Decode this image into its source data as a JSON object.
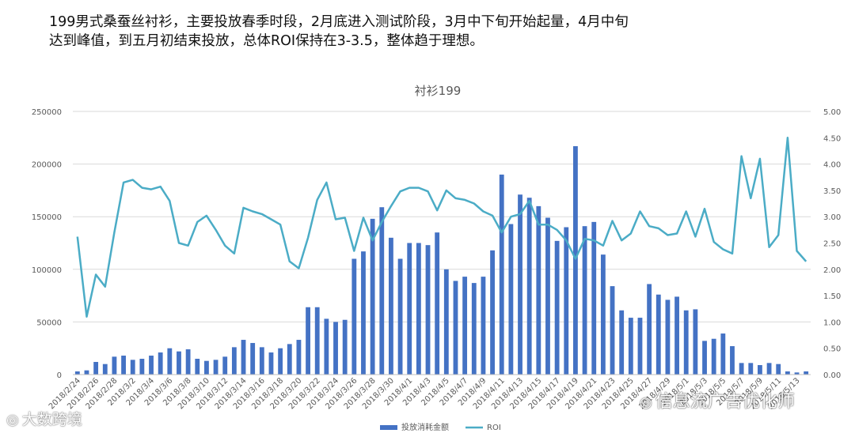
{
  "headline": {
    "line1": "199男式桑蚕丝衬衫，主要投放春季时段，2月底进入测试阶段，3月中下旬开始起量，4月中旬",
    "line2": "达到峰值，到五月初结束投放，总体ROI保持在3-3.5，整体趋于理想。"
  },
  "watermarks": {
    "left_icon": "wechat-icon",
    "left_text": "大数跨境",
    "right_icon": "wechat-icon",
    "right_text": "信息流广告优化师"
  },
  "colors": {
    "bar": "#4472C4",
    "line": "#4BACC6",
    "axis_text": "#595959",
    "grid": "#D9D9D9",
    "title": "#595959"
  },
  "chart_data": {
    "type": "bar",
    "title": "衬衫199",
    "xlabel": "",
    "ylabel": "",
    "x": [
      "2018/2/24",
      "2018/2/25",
      "2018/2/26",
      "2018/2/27",
      "2018/2/28",
      "2018/3/1",
      "2018/3/2",
      "2018/3/3",
      "2018/3/4",
      "2018/3/5",
      "2018/3/6",
      "2018/3/7",
      "2018/3/8",
      "2018/3/9",
      "2018/3/10",
      "2018/3/11",
      "2018/3/12",
      "2018/3/13",
      "2018/3/14",
      "2018/3/15",
      "2018/3/16",
      "2018/3/17",
      "2018/3/18",
      "2018/3/19",
      "2018/3/20",
      "2018/3/21",
      "2018/3/22",
      "2018/3/23",
      "2018/3/24",
      "2018/3/25",
      "2018/3/26",
      "2018/3/27",
      "2018/3/28",
      "2018/3/29",
      "2018/3/30",
      "2018/3/31",
      "2018/4/1",
      "2018/4/2",
      "2018/4/3",
      "2018/4/4",
      "2018/4/5",
      "2018/4/6",
      "2018/4/7",
      "2018/4/8",
      "2018/4/9",
      "2018/4/10",
      "2018/4/11",
      "2018/4/12",
      "2018/4/13",
      "2018/4/14",
      "2018/4/15",
      "2018/4/16",
      "2018/4/17",
      "2018/4/18",
      "2018/4/19",
      "2018/4/20",
      "2018/4/21",
      "2018/4/22",
      "2018/4/23",
      "2018/4/24",
      "2018/4/25",
      "2018/4/26",
      "2018/4/27",
      "2018/4/28",
      "2018/4/29",
      "2018/4/30",
      "2018/5/1",
      "2018/5/2",
      "2018/5/3",
      "2018/5/4",
      "2018/5/5",
      "2018/5/6",
      "2018/5/7",
      "2018/5/8",
      "2018/5/9",
      "2018/5/10",
      "2018/5/11",
      "2018/5/12",
      "2018/5/13",
      "2018/5/14"
    ],
    "tick_labels": [
      "2018/2/24",
      "2018/2/26",
      "2018/2/28",
      "2018/3/2",
      "2018/3/4",
      "2018/3/6",
      "2018/3/8",
      "2018/3/10",
      "2018/3/12",
      "2018/3/14",
      "2018/3/16",
      "2018/3/18",
      "2018/3/20",
      "2018/3/22",
      "2018/3/24",
      "2018/3/26",
      "2018/3/28",
      "2018/3/30",
      "2018/4/1",
      "2018/4/3",
      "2018/4/5",
      "2018/4/7",
      "2018/4/9",
      "2018/4/11",
      "2018/4/13",
      "2018/4/15",
      "2018/4/17",
      "2018/4/19",
      "2018/4/21",
      "2018/4/23",
      "2018/4/25",
      "2018/4/27",
      "2018/4/29",
      "2018/5/1",
      "2018/5/3",
      "2018/5/5",
      "2018/5/7",
      "2018/5/9",
      "2018/5/11",
      "2018/5/13"
    ],
    "y_left_ticks": [
      "0",
      "50000",
      "100000",
      "150000",
      "200000",
      "250000"
    ],
    "y_right_ticks": [
      "0.00",
      "0.50",
      "1.00",
      "1.50",
      "2.00",
      "2.50",
      "3.00",
      "3.50",
      "4.00",
      "4.50",
      "5.00"
    ],
    "ylim_left": [
      0,
      250000
    ],
    "ylim_right": [
      0,
      5
    ],
    "grid": true,
    "legend_position": "bottom",
    "series": [
      {
        "name": "投放消耗金额",
        "type": "bar",
        "axis": "left",
        "values": [
          3000,
          4000,
          12000,
          10000,
          17000,
          18000,
          14000,
          15000,
          18000,
          21000,
          25000,
          22000,
          24000,
          15000,
          13000,
          14000,
          17000,
          26000,
          33000,
          30000,
          26000,
          21000,
          25000,
          29000,
          33000,
          64000,
          64000,
          53000,
          50000,
          52000,
          110000,
          117000,
          148000,
          159000,
          130000,
          110000,
          125000,
          125000,
          123000,
          135000,
          100000,
          89000,
          93000,
          87000,
          93000,
          118000,
          190000,
          143000,
          171000,
          168000,
          160000,
          149000,
          127000,
          140000,
          217000,
          141000,
          145000,
          114000,
          84000,
          61000,
          54000,
          54000,
          86000,
          76000,
          71000,
          74000,
          61000,
          62000,
          32000,
          34000,
          39000,
          27000,
          11000,
          11000,
          9000,
          11000,
          10000,
          3000,
          2000,
          3000
        ]
      },
      {
        "name": "ROI",
        "type": "line",
        "axis": "right",
        "values": [
          2.62,
          1.1,
          1.9,
          1.67,
          2.7,
          3.65,
          3.7,
          3.55,
          3.52,
          3.57,
          3.3,
          2.5,
          2.45,
          2.9,
          3.02,
          2.75,
          2.45,
          2.3,
          3.17,
          3.1,
          3.05,
          2.95,
          2.85,
          2.15,
          2.02,
          2.6,
          3.32,
          3.65,
          2.95,
          2.98,
          2.35,
          2.98,
          2.55,
          2.9,
          3.2,
          3.48,
          3.55,
          3.55,
          3.48,
          3.12,
          3.5,
          3.35,
          3.32,
          3.25,
          3.1,
          3.02,
          2.7,
          3.0,
          3.05,
          3.3,
          2.85,
          2.85,
          2.75,
          2.55,
          2.2,
          2.58,
          2.55,
          2.45,
          2.92,
          2.55,
          2.68,
          3.1,
          2.82,
          2.78,
          2.65,
          2.68,
          3.1,
          2.62,
          3.15,
          2.52,
          2.38,
          2.3,
          4.15,
          3.35,
          4.1,
          2.42,
          2.65,
          4.5,
          2.35,
          2.15
        ]
      }
    ]
  }
}
